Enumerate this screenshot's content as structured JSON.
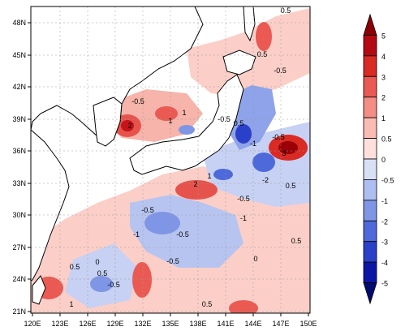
{
  "map": {
    "lat_labels": [
      "48N",
      "45N",
      "42N",
      "39N",
      "36N",
      "33N",
      "30N",
      "27N",
      "24N",
      "21N"
    ],
    "lon_labels": [
      "120E",
      "123E",
      "126E",
      "129E",
      "132E",
      "135E",
      "138E",
      "141E",
      "144E",
      "147E",
      "150E"
    ],
    "contour_labels": [
      "0.5",
      "0.5",
      "-0.5",
      "-0.5",
      "1",
      "2",
      "1",
      "-0.5",
      "0.5",
      "-1",
      "-0.5",
      "3",
      "1",
      "2",
      "-2",
      "-0.5",
      "0.5",
      "-0.5",
      "-1",
      "-0.5",
      "-1",
      "0.5",
      "0.5",
      "-0.5",
      "-0.5",
      "1",
      "0.5",
      "0",
      "0.5",
      "0"
    ]
  },
  "colorbar": {
    "labels": [
      "5",
      "4",
      "3",
      "2",
      "1",
      "0.5",
      "0",
      "-0.5",
      "-1",
      "-2",
      "-3",
      "-4",
      "-5"
    ],
    "colors": [
      "#fde0dc",
      "#fbbcb4",
      "#f48e84",
      "#ea5a52",
      "#d92a24",
      "#b40a12",
      "#8a0006"
    ],
    "neg_colors": [
      "#d8e0f6",
      "#aebef0",
      "#7f96e6",
      "#4e6ada",
      "#2a40c8",
      "#0c16a6",
      "#000a70"
    ]
  },
  "colors": {
    "land": "#ffffff",
    "ocean_base": "#f4f4f4",
    "coast": "#000000"
  }
}
